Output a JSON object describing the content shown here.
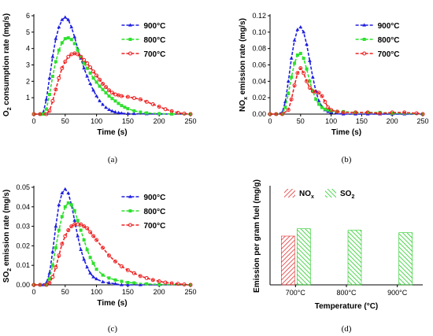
{
  "colors": {
    "900": "#1f1fe0",
    "800": "#2ee02e",
    "700": "#ee2020",
    "nox": "#e03030",
    "so2": "#22cc22"
  },
  "chart_data": [
    {
      "panel": "a",
      "caption": "(a)",
      "type": "scatter",
      "ylabel_main": "O",
      "ylabel_sub": "2",
      "ylabel_rest": " consumption rate (mg/s)",
      "xlabel": "Time (s)",
      "xlim": [
        0,
        250
      ],
      "ylim": [
        0,
        6
      ],
      "xticks": [
        0,
        50,
        100,
        150,
        200,
        250
      ],
      "yticks": [
        1,
        2,
        3,
        4,
        5,
        6
      ],
      "legend_position": "top-right",
      "series": [
        {
          "name": "900°C",
          "key": "900",
          "marker": "triangle",
          "x": [
            0,
            10,
            15,
            20,
            25,
            30,
            35,
            40,
            45,
            50,
            55,
            60,
            65,
            70,
            75,
            80,
            85,
            90,
            95,
            100,
            105,
            110,
            115,
            120,
            125,
            130,
            135,
            140,
            150,
            160,
            180,
            200,
            220,
            250
          ],
          "y": [
            0,
            0,
            0.1,
            0.9,
            2.2,
            3.5,
            4.6,
            5.3,
            5.75,
            5.9,
            5.75,
            5.3,
            4.7,
            4.0,
            3.4,
            2.8,
            2.3,
            1.85,
            1.45,
            1.1,
            0.8,
            0.58,
            0.4,
            0.27,
            0.18,
            0.12,
            0.08,
            0.05,
            0.03,
            0.02,
            0.01,
            0.01,
            0,
            0
          ]
        },
        {
          "name": "800°C",
          "key": "800",
          "marker": "square",
          "x": [
            0,
            10,
            15,
            20,
            25,
            30,
            35,
            40,
            45,
            50,
            55,
            60,
            65,
            70,
            75,
            80,
            85,
            90,
            95,
            100,
            105,
            110,
            115,
            120,
            125,
            130,
            135,
            140,
            145,
            150,
            160,
            170,
            180,
            200,
            220,
            250
          ],
          "y": [
            0,
            0,
            0,
            0.3,
            1.2,
            2.3,
            3.2,
            3.9,
            4.35,
            4.6,
            4.65,
            4.55,
            4.3,
            3.9,
            3.5,
            3.1,
            2.8,
            2.5,
            2.2,
            1.95,
            1.7,
            1.5,
            1.3,
            1.1,
            0.95,
            0.8,
            0.65,
            0.52,
            0.42,
            0.33,
            0.2,
            0.12,
            0.07,
            0.03,
            0.01,
            0
          ]
        },
        {
          "name": "700°C",
          "key": "700",
          "marker": "circle",
          "x": [
            0,
            10,
            20,
            25,
            30,
            35,
            40,
            45,
            50,
            55,
            60,
            65,
            70,
            75,
            80,
            85,
            90,
            95,
            100,
            105,
            110,
            115,
            120,
            125,
            130,
            135,
            140,
            150,
            160,
            170,
            180,
            190,
            200,
            210,
            220,
            230,
            240,
            250
          ],
          "y": [
            0,
            0,
            0,
            0.2,
            0.8,
            1.5,
            2.2,
            2.8,
            3.2,
            3.5,
            3.65,
            3.7,
            3.65,
            3.5,
            3.3,
            3.1,
            2.85,
            2.6,
            2.35,
            2.1,
            1.85,
            1.65,
            1.45,
            1.3,
            1.2,
            1.15,
            1.1,
            1.05,
            0.98,
            0.9,
            0.75,
            0.6,
            0.45,
            0.3,
            0.18,
            0.08,
            0.03,
            0
          ]
        }
      ]
    },
    {
      "panel": "b",
      "caption": "(b)",
      "type": "scatter",
      "ylabel_main": "NO",
      "ylabel_sub": "x",
      "ylabel_rest": " emission rate (mg/s)",
      "xlabel": "Time (s)",
      "xlim": [
        0,
        250
      ],
      "ylim": [
        0,
        0.12
      ],
      "xticks": [
        0,
        50,
        100,
        150,
        200,
        250
      ],
      "yticks": [
        0.0,
        0.02,
        0.04,
        0.06,
        0.08,
        0.1,
        0.12
      ],
      "ytick_labels": [
        "0.00",
        "0.02",
        "0.04",
        "0.06",
        "0.08",
        "0.10",
        "0.12"
      ],
      "legend_position": "top-right",
      "series": [
        {
          "name": "900°C",
          "key": "900",
          "marker": "triangle",
          "x": [
            0,
            10,
            20,
            25,
            30,
            35,
            40,
            45,
            50,
            55,
            60,
            65,
            70,
            75,
            80,
            85,
            90,
            95,
            100,
            110,
            120,
            140,
            160,
            180,
            200,
            220,
            250
          ],
          "y": [
            0,
            0,
            0.002,
            0.015,
            0.04,
            0.068,
            0.09,
            0.103,
            0.106,
            0.1,
            0.085,
            0.065,
            0.045,
            0.028,
            0.016,
            0.009,
            0.005,
            0.003,
            0.002,
            0.001,
            0,
            0,
            0,
            0,
            0,
            0,
            0
          ]
        },
        {
          "name": "800°C",
          "key": "800",
          "marker": "square",
          "x": [
            0,
            10,
            20,
            25,
            30,
            35,
            40,
            45,
            50,
            55,
            60,
            65,
            70,
            75,
            80,
            85,
            90,
            95,
            100,
            110,
            120,
            140,
            160,
            180,
            200,
            220,
            250
          ],
          "y": [
            0,
            0,
            0,
            0.008,
            0.025,
            0.045,
            0.062,
            0.072,
            0.074,
            0.068,
            0.055,
            0.04,
            0.028,
            0.018,
            0.012,
            0.008,
            0.006,
            0.005,
            0.004,
            0.003,
            0.003,
            0.002,
            0.002,
            0.002,
            0.001,
            0.001,
            0
          ]
        },
        {
          "name": "700°C",
          "key": "700",
          "marker": "circle",
          "x": [
            0,
            10,
            20,
            30,
            35,
            40,
            45,
            50,
            55,
            60,
            65,
            70,
            75,
            80,
            85,
            90,
            95,
            100,
            110,
            120,
            140,
            160,
            180,
            200,
            220,
            240,
            250
          ],
          "y": [
            0,
            0,
            0,
            0.005,
            0.018,
            0.035,
            0.05,
            0.056,
            0.05,
            0.04,
            0.032,
            0.028,
            0.027,
            0.026,
            0.022,
            0.015,
            0.008,
            0.005,
            0.003,
            0.002,
            0.002,
            0.002,
            0.001,
            0.002,
            0.002,
            0.001,
            0
          ]
        }
      ]
    },
    {
      "panel": "c",
      "caption": "(c)",
      "type": "scatter",
      "ylabel_main": "SO",
      "ylabel_sub": "2",
      "ylabel_rest": " emission rate (mg/s)",
      "xlabel": "Time (s)",
      "xlim": [
        0,
        250
      ],
      "ylim": [
        0,
        0.05
      ],
      "xticks": [
        0,
        50,
        100,
        150,
        200,
        250
      ],
      "yticks": [
        0.0,
        0.01,
        0.02,
        0.03,
        0.04,
        0.05
      ],
      "ytick_labels": [
        "0.00",
        "0.01",
        "0.02",
        "0.03",
        "0.04",
        "0.05"
      ],
      "legend_position": "top-right",
      "series": [
        {
          "name": "900°C",
          "key": "900",
          "marker": "triangle",
          "x": [
            0,
            10,
            15,
            20,
            25,
            30,
            35,
            40,
            45,
            50,
            55,
            60,
            65,
            70,
            75,
            80,
            85,
            90,
            95,
            100,
            110,
            120,
            130,
            140,
            150,
            170,
            200,
            250
          ],
          "y": [
            0,
            0,
            0,
            0.001,
            0.006,
            0.017,
            0.03,
            0.041,
            0.047,
            0.049,
            0.047,
            0.041,
            0.033,
            0.025,
            0.018,
            0.013,
            0.009,
            0.006,
            0.004,
            0.003,
            0.0015,
            0.001,
            0.0005,
            0,
            0,
            0,
            0,
            0
          ]
        },
        {
          "name": "800°C",
          "key": "800",
          "marker": "square",
          "x": [
            0,
            10,
            20,
            25,
            30,
            35,
            40,
            45,
            50,
            55,
            60,
            65,
            70,
            75,
            80,
            85,
            90,
            95,
            100,
            110,
            120,
            130,
            140,
            150,
            160,
            180,
            200,
            250
          ],
          "y": [
            0,
            0,
            0,
            0.003,
            0.01,
            0.019,
            0.028,
            0.035,
            0.04,
            0.042,
            0.041,
            0.038,
            0.033,
            0.028,
            0.023,
            0.018,
            0.014,
            0.011,
            0.008,
            0.005,
            0.0035,
            0.0025,
            0.0018,
            0.0012,
            0.001,
            0.0005,
            0.0002,
            0
          ]
        },
        {
          "name": "700°C",
          "key": "700",
          "marker": "circle",
          "x": [
            0,
            10,
            20,
            25,
            30,
            35,
            40,
            45,
            50,
            55,
            60,
            65,
            70,
            75,
            80,
            85,
            90,
            95,
            100,
            110,
            120,
            130,
            140,
            150,
            160,
            170,
            180,
            190,
            200,
            210,
            220,
            230,
            240,
            250
          ],
          "y": [
            0,
            0,
            0,
            0.001,
            0.004,
            0.009,
            0.015,
            0.021,
            0.025,
            0.028,
            0.03,
            0.031,
            0.031,
            0.031,
            0.03,
            0.029,
            0.027,
            0.025,
            0.023,
            0.019,
            0.015,
            0.012,
            0.0095,
            0.0075,
            0.006,
            0.0045,
            0.0035,
            0.0025,
            0.0018,
            0.0012,
            0.0008,
            0.0005,
            0.0002,
            0
          ]
        }
      ]
    },
    {
      "panel": "d",
      "caption": "(d)",
      "type": "bar",
      "ylabel": "Emission per gram fuel (mg/g)",
      "xlabel": "Temperature (°C)",
      "categories": [
        "700°C",
        "800°C",
        "900°C"
      ],
      "legend_position": "top-left",
      "ylim": [
        0,
        20
      ],
      "series": [
        {
          "name_main": "NO",
          "name_sub": "x",
          "key": "nox",
          "values": [
            10.0,
            null,
            null
          ]
        },
        {
          "name_main": "SO",
          "name_sub": "2",
          "key": "so2",
          "values": [
            11.5,
            11.2,
            10.7
          ]
        }
      ]
    }
  ]
}
